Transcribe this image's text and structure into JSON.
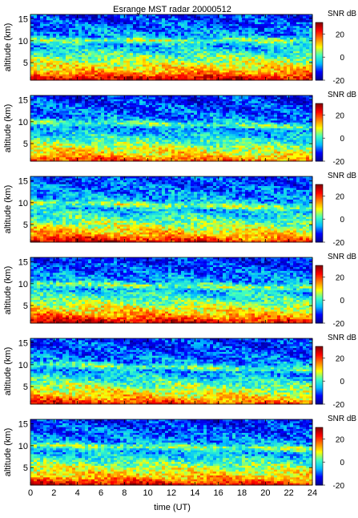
{
  "figure": {
    "title": "Esrange MST radar 20000512",
    "xlabel": "time (UT)",
    "ylabel": "altitude (km)",
    "colorbar_label": "SNR dB"
  },
  "colormap": [
    "#00008f",
    "#0000ff",
    "#00bfff",
    "#40ffbf",
    "#ffff00",
    "#ff8000",
    "#ff0000",
    "#800000"
  ],
  "chart_data": [
    {
      "type": "heatmap",
      "panel": 1,
      "x_range": [
        0,
        24
      ],
      "x_ticks": [
        0,
        2,
        4,
        6,
        8,
        10,
        12,
        14,
        16,
        18,
        20,
        22,
        24
      ],
      "y_range": [
        1,
        16
      ],
      "y_ticks": [
        5,
        10,
        15
      ],
      "value_range": [
        -20,
        30
      ],
      "colorbar_ticks": [
        -20,
        0,
        20
      ],
      "profile": [
        {
          "altitude": 1.5,
          "snr": 24
        },
        {
          "altitude": 3,
          "snr": 13
        },
        {
          "altitude": 5,
          "snr": 7
        },
        {
          "altitude": 7,
          "snr": 0
        },
        {
          "altitude": 9,
          "snr": -6
        },
        {
          "altitude": 10,
          "snr": 5
        },
        {
          "altitude": 11,
          "snr": -6
        },
        {
          "altitude": 13,
          "snr": -9
        },
        {
          "altitude": 15.5,
          "snr": -12
        }
      ],
      "tilt_per_hour": 0.0,
      "title": "Esrange MST radar 20000512",
      "xlabel": "",
      "ylabel": "altitude (km)"
    },
    {
      "type": "heatmap",
      "panel": 2,
      "x_range": [
        0,
        24
      ],
      "x_ticks": [
        0,
        2,
        4,
        6,
        8,
        10,
        12,
        14,
        16,
        18,
        20,
        22,
        24
      ],
      "y_range": [
        1,
        16
      ],
      "y_ticks": [
        5,
        10,
        15
      ],
      "value_range": [
        -20,
        30
      ],
      "colorbar_ticks": [
        -20,
        0,
        20
      ],
      "profile": [
        {
          "altitude": 1.5,
          "snr": 20
        },
        {
          "altitude": 3,
          "snr": 11
        },
        {
          "altitude": 5,
          "snr": 5
        },
        {
          "altitude": 7,
          "snr": -2
        },
        {
          "altitude": 9,
          "snr": -8
        },
        {
          "altitude": 10,
          "snr": 3
        },
        {
          "altitude": 11,
          "snr": -7
        },
        {
          "altitude": 13,
          "snr": -10
        },
        {
          "altitude": 15.5,
          "snr": -12
        }
      ],
      "tilt_per_hour": -0.05,
      "title": "",
      "xlabel": "",
      "ylabel": "altitude (km)"
    },
    {
      "type": "heatmap",
      "panel": 3,
      "x_range": [
        0,
        24
      ],
      "x_ticks": [
        0,
        2,
        4,
        6,
        8,
        10,
        12,
        14,
        16,
        18,
        20,
        22,
        24
      ],
      "y_range": [
        1,
        16
      ],
      "y_ticks": [
        5,
        10,
        15
      ],
      "value_range": [
        -20,
        30
      ],
      "colorbar_ticks": [
        -20,
        0,
        20
      ],
      "profile": [
        {
          "altitude": 1.5,
          "snr": 25
        },
        {
          "altitude": 3,
          "snr": 14
        },
        {
          "altitude": 5,
          "snr": 7
        },
        {
          "altitude": 7,
          "snr": 0
        },
        {
          "altitude": 9,
          "snr": -5
        },
        {
          "altitude": 10,
          "snr": 6
        },
        {
          "altitude": 11,
          "snr": -5
        },
        {
          "altitude": 13,
          "snr": -8
        },
        {
          "altitude": 15.5,
          "snr": -11
        }
      ],
      "tilt_per_hour": -0.05,
      "title": "",
      "xlabel": "",
      "ylabel": "altitude (km)"
    },
    {
      "type": "heatmap",
      "panel": 4,
      "x_range": [
        0,
        24
      ],
      "x_ticks": [
        0,
        2,
        4,
        6,
        8,
        10,
        12,
        14,
        16,
        18,
        20,
        22,
        24
      ],
      "y_range": [
        1,
        16
      ],
      "y_ticks": [
        5,
        10,
        15
      ],
      "value_range": [
        -20,
        30
      ],
      "colorbar_ticks": [
        -20,
        0,
        20
      ],
      "profile": [
        {
          "altitude": 1.5,
          "snr": 26
        },
        {
          "altitude": 3,
          "snr": 15
        },
        {
          "altitude": 5,
          "snr": 8
        },
        {
          "altitude": 7,
          "snr": 1
        },
        {
          "altitude": 9,
          "snr": -5
        },
        {
          "altitude": 10,
          "snr": 5
        },
        {
          "altitude": 11,
          "snr": -6
        },
        {
          "altitude": 13,
          "snr": -9
        },
        {
          "altitude": 15.5,
          "snr": -12
        }
      ],
      "tilt_per_hour": -0.04,
      "title": "",
      "xlabel": "",
      "ylabel": "altitude (km)"
    },
    {
      "type": "heatmap",
      "panel": 5,
      "x_range": [
        0,
        24
      ],
      "x_ticks": [
        0,
        2,
        4,
        6,
        8,
        10,
        12,
        14,
        16,
        18,
        20,
        22,
        24
      ],
      "y_range": [
        1,
        16
      ],
      "y_ticks": [
        5,
        10,
        15
      ],
      "value_range": [
        -20,
        30
      ],
      "colorbar_ticks": [
        -20,
        0,
        20
      ],
      "profile": [
        {
          "altitude": 1.5,
          "snr": 22
        },
        {
          "altitude": 3,
          "snr": 12
        },
        {
          "altitude": 5,
          "snr": 6
        },
        {
          "altitude": 7,
          "snr": -1
        },
        {
          "altitude": 9,
          "snr": -7
        },
        {
          "altitude": 10,
          "snr": 3
        },
        {
          "altitude": 11,
          "snr": -7
        },
        {
          "altitude": 13,
          "snr": -10
        },
        {
          "altitude": 15.5,
          "snr": -12
        }
      ],
      "tilt_per_hour": -0.05,
      "title": "",
      "xlabel": "",
      "ylabel": "altitude (km)"
    },
    {
      "type": "heatmap",
      "panel": 6,
      "x_range": [
        0,
        24
      ],
      "x_ticks": [
        0,
        2,
        4,
        6,
        8,
        10,
        12,
        14,
        16,
        18,
        20,
        22,
        24
      ],
      "y_range": [
        1,
        16
      ],
      "y_ticks": [
        5,
        10,
        15
      ],
      "value_range": [
        -20,
        30
      ],
      "colorbar_ticks": [
        -20,
        0,
        20
      ],
      "profile": [
        {
          "altitude": 1.5,
          "snr": 24
        },
        {
          "altitude": 3,
          "snr": 13
        },
        {
          "altitude": 5,
          "snr": 7
        },
        {
          "altitude": 7,
          "snr": 0
        },
        {
          "altitude": 9,
          "snr": -6
        },
        {
          "altitude": 10,
          "snr": 5
        },
        {
          "altitude": 11,
          "snr": -6
        },
        {
          "altitude": 13,
          "snr": -9
        },
        {
          "altitude": 15.5,
          "snr": -12
        }
      ],
      "tilt_per_hour": -0.03,
      "title": "",
      "xlabel": "time (UT)",
      "ylabel": "altitude (km)"
    }
  ]
}
